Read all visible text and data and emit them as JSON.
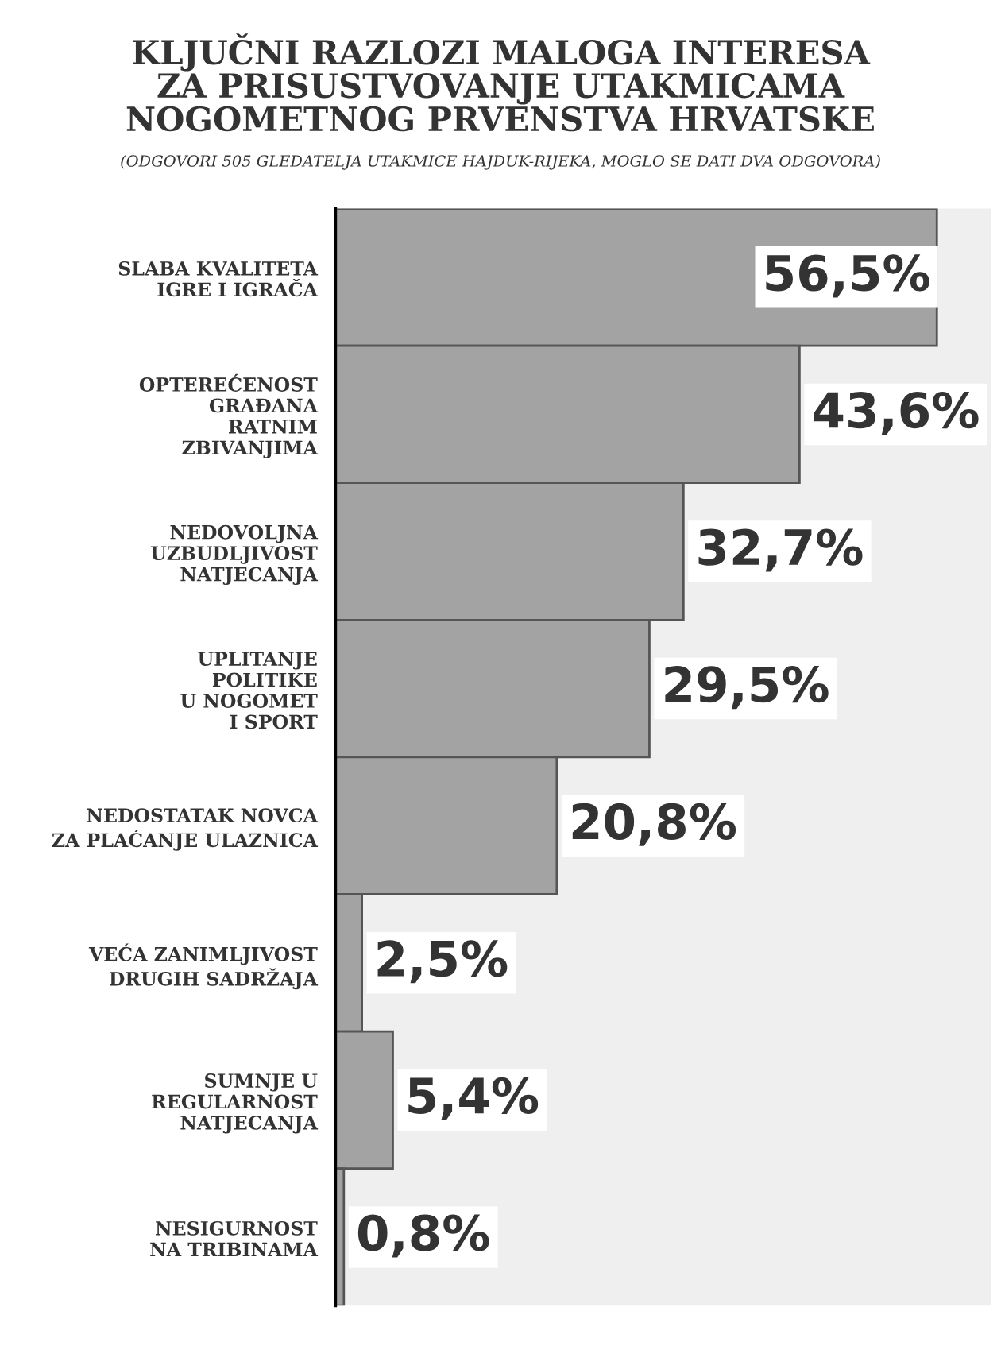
{
  "chart_data": {
    "type": "bar",
    "orientation": "horizontal",
    "title": "KLJUČNI RAZLOZI MALOGA INTERESA\nZA PRISUSTVOVANJE UTAKMICAMA\nNOGOMETNOG PRVENSTVA HRVATSKE",
    "subtitle": "(ODGOVORI 505 GLEDATELJA UTAKMICE HAJDUK-RIJEKA, MOGLO SE DATI DVA ODGOVORA)",
    "categories": [
      "SLABA KVALITETA\nIGRE I IGRAČA",
      "OPTEREĆENOST\nGRAĐANA\nRATNIM\nZBIVANJIMA",
      "NEDOVOLJNA\nUZBUDLJIVOST\nNATJECANJA",
      "UPLITANJE\nPOLITIKE\nU NOGOMET\nI SPORT",
      "NEDOSTATAK NOVCA\nZA PLAĆANJE ULAZNICA",
      "VEĆA ZANIMLJIVOST\nDRUGIH SADRŽAJA",
      "SUMNJE U\nREGULARNOST\nNATJECANJA",
      "NESIGURNOST\nNA TRIBINAMA"
    ],
    "values": [
      56.5,
      43.6,
      32.7,
      29.5,
      20.8,
      2.5,
      5.4,
      0.8
    ],
    "value_labels": [
      "56,5%",
      "43,6%",
      "32,7%",
      "29,5%",
      "20,8%",
      "2,5%",
      "5,4%",
      "0,8%"
    ],
    "color": "#a3a3a3",
    "grid": false,
    "legend": false
  }
}
